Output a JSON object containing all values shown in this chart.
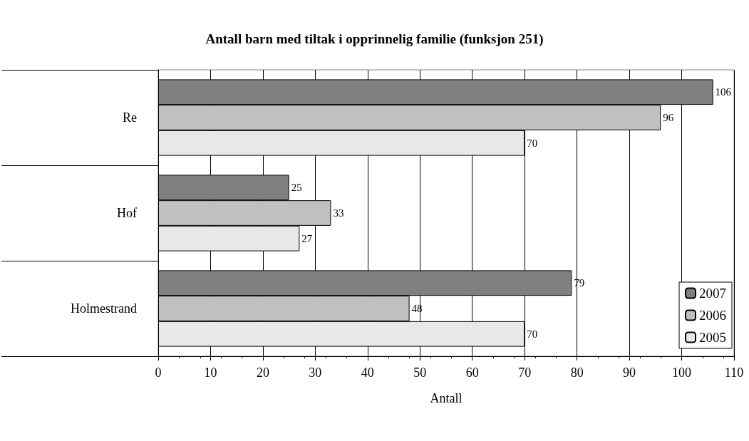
{
  "chart_data": {
    "type": "bar",
    "orientation": "horizontal",
    "title": "Antall barn med tiltak i opprinnelig familie (funksjon 251)",
    "xlabel": "Antall",
    "categories": [
      "Re",
      "Hof",
      "Holmestrand"
    ],
    "series": [
      {
        "name": "2007",
        "color": "#808080",
        "values": [
          106,
          25,
          79
        ]
      },
      {
        "name": "2006",
        "color": "#c0c0c0",
        "values": [
          96,
          33,
          48
        ]
      },
      {
        "name": "2005",
        "color": "#e8e8e8",
        "values": [
          70,
          27,
          70
        ]
      }
    ],
    "xlim": [
      0,
      110
    ],
    "xticks": [
      0,
      10,
      20,
      30,
      40,
      50,
      60,
      70,
      80,
      90,
      100,
      110
    ],
    "grid": "x",
    "legend": "bottom right",
    "data_labels": true
  }
}
